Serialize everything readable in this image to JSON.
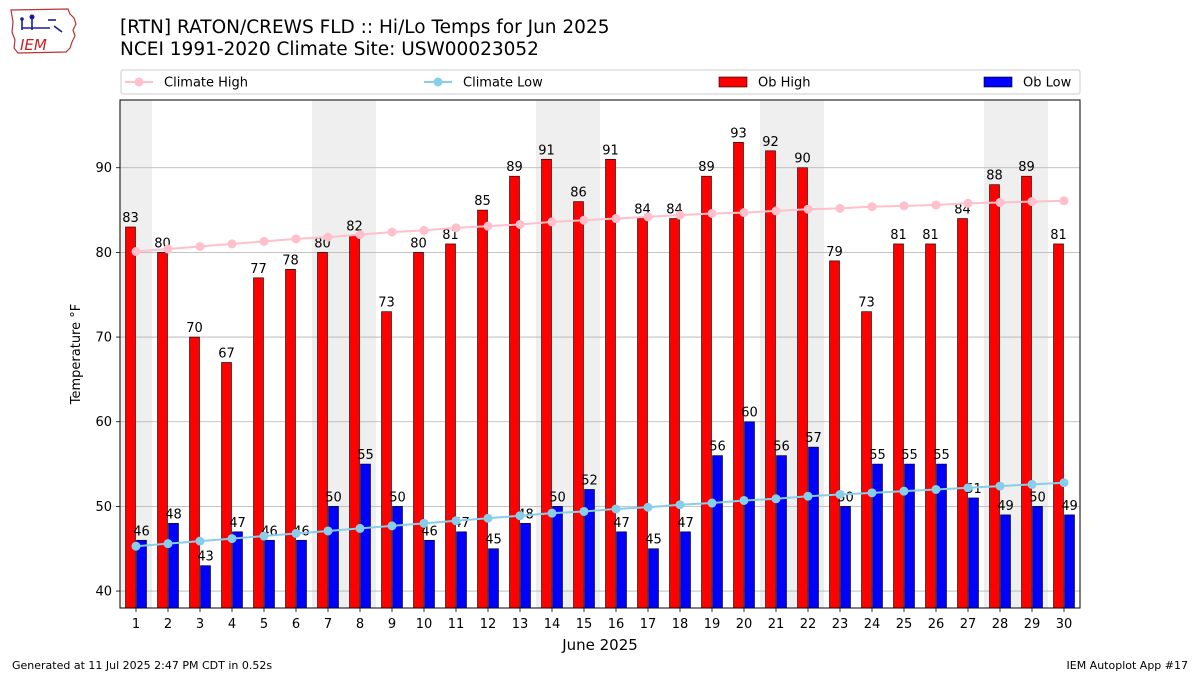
{
  "title": {
    "line1": "[RTN] RATON/CREWS FLD :: Hi/Lo Temps for Jun 2025",
    "line2": "NCEI 1991-2020 Climate Site: USW00023052"
  },
  "logo": {
    "text": "IEM"
  },
  "footer": {
    "left": "Generated at 11 Jul 2025 2:47 PM CDT in 0.52s",
    "right": "IEM Autoplot App #17"
  },
  "colors": {
    "ob_high": "#ff0000",
    "ob_low": "#0000ff",
    "climate_high": "#ffc0cb",
    "climate_low": "#87ceeb",
    "weekend_band": "#efefef",
    "grid": "#b0b0b0"
  },
  "chart_data": {
    "type": "bar",
    "xlabel": "June 2025",
    "ylabel": "Temperature °F",
    "ylim": [
      38,
      98
    ],
    "yticks": [
      40,
      50,
      60,
      70,
      80,
      90
    ],
    "grid": true,
    "legend_placement": "top",
    "categories": [
      "1",
      "2",
      "3",
      "4",
      "5",
      "6",
      "7",
      "8",
      "9",
      "10",
      "11",
      "12",
      "13",
      "14",
      "15",
      "16",
      "17",
      "18",
      "19",
      "20",
      "21",
      "22",
      "23",
      "24",
      "25",
      "26",
      "27",
      "28",
      "29",
      "30"
    ],
    "weekend_days": [
      1,
      7,
      8,
      14,
      15,
      21,
      22,
      28,
      29
    ],
    "series": [
      {
        "name": "Ob High",
        "kind": "bar",
        "values": [
          83,
          80,
          70,
          67,
          77,
          78,
          80,
          82,
          73,
          80,
          81,
          85,
          89,
          91,
          86,
          91,
          84,
          84,
          89,
          93,
          92,
          90,
          79,
          73,
          81,
          81,
          84,
          88,
          89,
          81
        ]
      },
      {
        "name": "Ob Low",
        "kind": "bar",
        "values": [
          46,
          48,
          43,
          47,
          46,
          46,
          50,
          55,
          50,
          46,
          47,
          45,
          48,
          50,
          52,
          47,
          45,
          47,
          56,
          60,
          56,
          57,
          50,
          55,
          55,
          55,
          51,
          49,
          50,
          49
        ]
      },
      {
        "name": "Climate High",
        "kind": "line",
        "values": [
          80.1,
          80.4,
          80.7,
          81.0,
          81.3,
          81.6,
          81.8,
          82.1,
          82.4,
          82.6,
          82.9,
          83.1,
          83.3,
          83.6,
          83.8,
          84.0,
          84.2,
          84.4,
          84.6,
          84.7,
          84.9,
          85.1,
          85.2,
          85.4,
          85.5,
          85.6,
          85.8,
          85.9,
          86.0,
          86.1
        ]
      },
      {
        "name": "Climate Low",
        "kind": "line",
        "values": [
          45.3,
          45.6,
          45.9,
          46.2,
          46.5,
          46.8,
          47.1,
          47.4,
          47.7,
          48.0,
          48.3,
          48.6,
          48.9,
          49.2,
          49.4,
          49.7,
          49.9,
          50.2,
          50.4,
          50.7,
          50.9,
          51.2,
          51.4,
          51.6,
          51.8,
          52.0,
          52.2,
          52.4,
          52.6,
          52.8
        ]
      }
    ]
  }
}
